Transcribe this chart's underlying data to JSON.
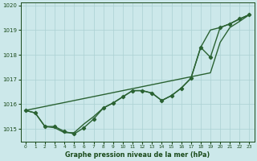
{
  "xlabel": "Graphe pression niveau de la mer (hPa)",
  "x": [
    0,
    1,
    2,
    3,
    4,
    5,
    6,
    7,
    8,
    9,
    10,
    11,
    12,
    13,
    14,
    15,
    16,
    17,
    18,
    19,
    20,
    21,
    22,
    23
  ],
  "line_jagged": [
    1015.75,
    1015.65,
    1015.1,
    1015.1,
    1014.9,
    1014.8,
    1015.05,
    1015.4,
    1015.85,
    1016.05,
    1016.3,
    1016.55,
    1016.55,
    1016.45,
    1016.15,
    1016.35,
    1016.65,
    1017.05,
    1018.3,
    1017.9,
    1019.1,
    1019.25,
    1019.45,
    1019.62
  ],
  "line_straight": [
    1015.75,
    1015.83,
    1015.91,
    1015.99,
    1016.07,
    1016.15,
    1016.23,
    1016.31,
    1016.39,
    1016.47,
    1016.55,
    1016.63,
    1016.71,
    1016.79,
    1016.87,
    1016.95,
    1017.03,
    1017.11,
    1017.19,
    1017.27,
    1018.5,
    1019.1,
    1019.35,
    1019.62
  ],
  "line_curve": [
    1015.75,
    1015.65,
    1015.1,
    1015.05,
    1014.85,
    1014.85,
    1015.2,
    1015.5,
    1015.85,
    1016.05,
    1016.3,
    1016.55,
    1016.55,
    1016.45,
    1016.15,
    1016.35,
    1016.65,
    1017.05,
    1018.3,
    1019.0,
    1019.1,
    1019.25,
    1019.45,
    1019.62
  ],
  "line_color": "#2a6232",
  "bg_color": "#cce8ea",
  "grid_color": "#aad0d2",
  "label_color": "#1a4a1a",
  "ylim": [
    1014.5,
    1020.1
  ],
  "yticks": [
    1015,
    1016,
    1017,
    1018,
    1019,
    1020
  ],
  "marker": "D",
  "markersize": 2.2,
  "linewidth": 1.0
}
